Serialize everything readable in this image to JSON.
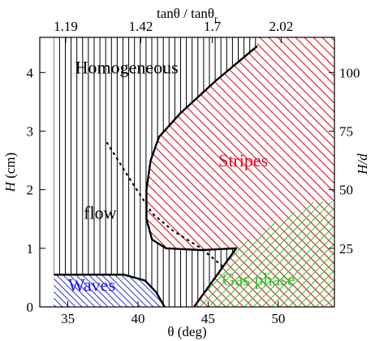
{
  "chart_data": {
    "type": "phase-diagram",
    "xlabel": "θ (deg)",
    "ylabel": "H (cm)",
    "top_axis_label": "tanθ / tanθ_r",
    "right_axis_label": "H/d",
    "xlim": [
      33,
      54
    ],
    "ylim": [
      0,
      4.6
    ],
    "x_ticks": [
      35,
      40,
      45,
      50
    ],
    "y_ticks": [
      0,
      1,
      2,
      3,
      4
    ],
    "top_ticks": [
      {
        "label": "1.19",
        "theta": 34.85
      },
      {
        "label": "1.42",
        "theta": 40.2
      },
      {
        "label": "1.7",
        "theta": 45.3
      },
      {
        "label": "2.02",
        "theta": 50.2
      }
    ],
    "right_ticks": [
      {
        "label": "25",
        "H": 1.0
      },
      {
        "label": "50",
        "H": 2.0
      },
      {
        "label": "75",
        "H": 3.0
      },
      {
        "label": "100",
        "H": 4.0
      }
    ],
    "regions": [
      {
        "name": "Homogeneous",
        "label_color": "#000000",
        "label_pos": [
          39.2,
          3.98
        ]
      },
      {
        "name": "flow",
        "label_color": "#000000",
        "label_pos": [
          37.3,
          1.5
        ]
      },
      {
        "name": "Stripes",
        "label_color": "#e8001a",
        "label_pos": [
          47.5,
          2.4
        ],
        "hatch_color": "#e8001a"
      },
      {
        "name": "Waves",
        "label_color": "#1a1aff",
        "label_pos": [
          36.7,
          0.27
        ],
        "hatch_color": "#3333dd"
      },
      {
        "name": "Gas phase",
        "label_color": "#22cc22",
        "label_pos": [
          48.6,
          0.37
        ],
        "hatch_color": "#22cc22"
      }
    ],
    "boundaries": {
      "stripes_boundary": [
        [
          48.5,
          4.45
        ],
        [
          45.5,
          3.85
        ],
        [
          43.0,
          3.3
        ],
        [
          41.5,
          2.9
        ],
        [
          40.9,
          2.5
        ],
        [
          40.6,
          2.0
        ],
        [
          40.6,
          1.5
        ],
        [
          41.0,
          1.15
        ],
        [
          42.0,
          1.0
        ],
        [
          44.5,
          0.97
        ],
        [
          47.0,
          1.0
        ],
        [
          44.0,
          0.0
        ]
      ],
      "waves_boundary": [
        [
          34.0,
          0.55
        ],
        [
          39.0,
          0.55
        ],
        [
          40.5,
          0.45
        ],
        [
          41.3,
          0.25
        ],
        [
          41.9,
          0.0
        ]
      ],
      "dotted": [
        [
          37.8,
          2.8
        ],
        [
          39.5,
          2.15
        ],
        [
          41.0,
          1.6
        ],
        [
          42.5,
          1.3
        ],
        [
          44.5,
          1.0
        ],
        [
          46.0,
          0.7
        ]
      ]
    },
    "vertical_hatch_xrange": [
      34.0,
      48.5
    ]
  }
}
